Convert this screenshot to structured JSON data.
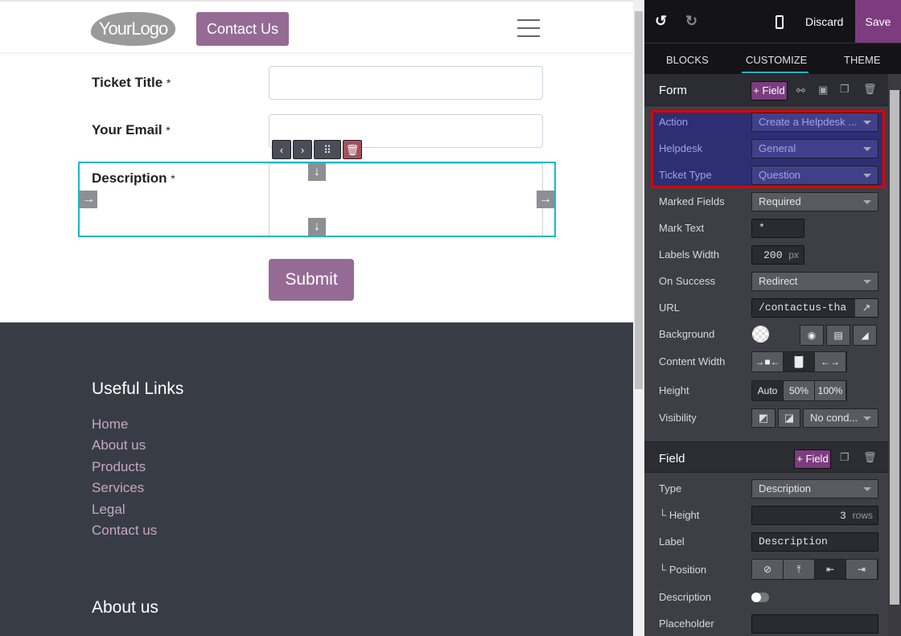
{
  "site": {
    "logo": "YourLogo",
    "contact_button": "Contact Us",
    "form": {
      "fields": [
        {
          "label": "Ticket Title",
          "mark": "*"
        },
        {
          "label": "Your Email",
          "mark": "*"
        },
        {
          "label": "Description",
          "mark": "*"
        }
      ],
      "submit": "Submit"
    },
    "footer": {
      "useful_links_title": "Useful Links",
      "links": [
        "Home",
        "About us",
        "Products",
        "Services",
        "Legal",
        "Contact us"
      ],
      "about_title": "About us"
    }
  },
  "editor": {
    "toolbar": {
      "discard": "Discard",
      "save": "Save"
    },
    "tabs": [
      {
        "label": "BLOCKS"
      },
      {
        "label": "CUSTOMIZE",
        "active": true
      },
      {
        "label": "THEME"
      }
    ],
    "form_section": {
      "title": "Form",
      "add_field": "+ Field",
      "action": {
        "label": "Action",
        "value": "Create a Helpdesk ..."
      },
      "helpdesk": {
        "label": "Helpdesk",
        "value": "General"
      },
      "ticket_type": {
        "label": "Ticket Type",
        "value": "Question"
      },
      "marked_fields": {
        "label": "Marked Fields",
        "value": "Required"
      },
      "mark_text": {
        "label": "Mark Text",
        "value": "*"
      },
      "labels_width": {
        "label": "Labels Width",
        "value": "200",
        "unit": "px"
      },
      "on_success": {
        "label": "On Success",
        "value": "Redirect"
      },
      "url": {
        "label": "URL",
        "value": "/contactus-tha"
      },
      "background": {
        "label": "Background"
      },
      "content_width": {
        "label": "Content Width"
      },
      "height": {
        "label": "Height",
        "options": [
          "Auto",
          "50%",
          "100%"
        ],
        "selected": "Auto"
      },
      "visibility": {
        "label": "Visibility",
        "value": "No cond..."
      }
    },
    "field_section": {
      "title": "Field",
      "add_field": "+ Field",
      "type": {
        "label": "Type",
        "value": "Description"
      },
      "height": {
        "label": "└ Height",
        "value": "3",
        "unit": "rows"
      },
      "label": {
        "label": "Label",
        "value": "Description"
      },
      "position": {
        "label": "└ Position"
      },
      "description": {
        "label": "Description",
        "enabled": false
      },
      "placeholder": {
        "label": "Placeholder",
        "value": ""
      }
    },
    "colors": {
      "accent": "#7c3c7f",
      "highlight_border": "#e00000",
      "selection": "#19b6c9"
    }
  }
}
